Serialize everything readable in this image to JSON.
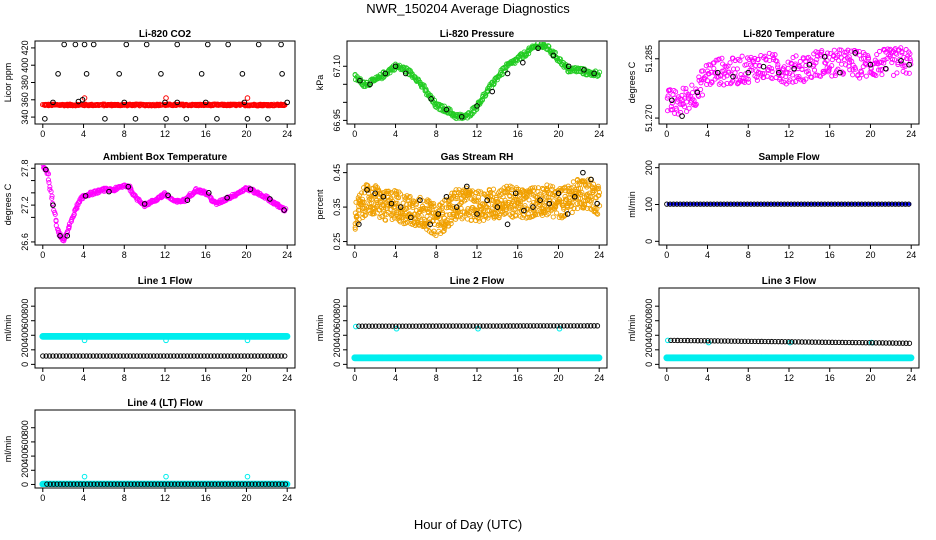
{
  "page": {
    "title": "NWR_150204  Average Diagnostics",
    "xlabel": "Hour of Day (UTC)"
  },
  "colors": {
    "black": "#000000",
    "red": "#ff0000",
    "green": "#22cc22",
    "magenta": "#ff00ff",
    "orange": "#f0a000",
    "blue": "#0000ff",
    "cyan": "#00eeee"
  },
  "chart_data": [
    {
      "type": "scatter",
      "title": "Li-820 CO2",
      "ylabel": "Licor ppm",
      "x_ticks": [
        0,
        4,
        8,
        12,
        16,
        20,
        24
      ],
      "y_ticks": [
        340,
        360,
        380,
        400,
        420
      ],
      "xlim": [
        0,
        24
      ],
      "ylim": [
        332,
        428
      ],
      "series": [
        {
          "color": "red",
          "style": "dense",
          "x": [
            0,
            4,
            8,
            12,
            16,
            20,
            23.8
          ],
          "y": [
            354,
            354,
            354,
            354,
            354,
            354,
            354
          ],
          "jitter": 1
        },
        {
          "color": "red",
          "style": "points",
          "x": [
            4.1,
            12.1,
            20.1
          ],
          "y": [
            362,
            362,
            362
          ]
        },
        {
          "color": "black",
          "style": "points",
          "x": [
            0.2,
            2.1,
            3.2,
            4.1,
            5,
            6.1,
            8.2,
            9.1,
            10.2,
            12.1,
            13.2,
            14.1,
            16.2,
            17.1,
            18.2,
            20.1,
            21.2,
            22.1,
            23.4
          ],
          "y": [
            338,
            424,
            424,
            424,
            424,
            338,
            424,
            338,
            424,
            338,
            424,
            338,
            424,
            338,
            424,
            338,
            424,
            338,
            424
          ]
        },
        {
          "color": "black",
          "style": "points",
          "x": [
            1.5,
            3.5,
            4.3,
            7.5,
            11.6,
            15.6,
            19.6,
            23.5
          ],
          "y": [
            390,
            358,
            390,
            390,
            390,
            390,
            390,
            390
          ]
        },
        {
          "color": "black",
          "style": "points",
          "x": [
            1,
            3.9,
            8,
            12,
            13.2,
            16,
            19.8,
            24
          ],
          "y": [
            357,
            360,
            357,
            357,
            357,
            357,
            357,
            357
          ]
        }
      ]
    },
    {
      "type": "scatter",
      "title": "Li-820 Pressure",
      "ylabel": "kPa",
      "x_ticks": [
        0,
        4,
        8,
        12,
        16,
        20,
        24
      ],
      "y_ticks": [
        66.95,
        67.0,
        67.05,
        67.1
      ],
      "y_tick_labels": [
        "66.95",
        "",
        "",
        "67.10"
      ],
      "xlim": [
        0,
        24
      ],
      "ylim": [
        66.94,
        67.17
      ],
      "series": [
        {
          "color": "green",
          "style": "dense",
          "x": [
            0,
            1,
            2,
            3,
            4,
            5,
            6,
            7,
            8,
            9,
            10,
            11,
            12,
            13,
            14,
            15,
            16,
            17,
            18,
            19,
            20,
            21,
            22,
            23,
            24
          ],
          "y": [
            67.07,
            67.05,
            67.06,
            67.08,
            67.1,
            67.09,
            67.07,
            67.03,
            66.99,
            66.98,
            66.96,
            66.96,
            66.99,
            67.03,
            67.07,
            67.1,
            67.12,
            67.14,
            67.16,
            67.15,
            67.12,
            67.09,
            67.09,
            67.08,
            67.08
          ],
          "jitter": 0.008
        },
        {
          "color": "black",
          "style": "points",
          "x": [
            0.5,
            1.5,
            3,
            4,
            5,
            7.5,
            9,
            10.5,
            12,
            13.5,
            15,
            16.5,
            18,
            19.5,
            21,
            22.5,
            23.5
          ],
          "y": [
            67.06,
            67.05,
            67.08,
            67.1,
            67.08,
            67.01,
            66.98,
            66.96,
            66.99,
            67.03,
            67.08,
            67.11,
            67.15,
            67.13,
            67.1,
            67.09,
            67.08
          ]
        }
      ]
    },
    {
      "type": "scatter",
      "title": "Li-820 Temperature",
      "ylabel": "degrees C",
      "x_ticks": [
        0,
        4,
        8,
        12,
        16,
        20,
        24
      ],
      "y_ticks": [
        51.27,
        51.285
      ],
      "y_tick_labels": [
        "51.270",
        "51.285"
      ],
      "xlim": [
        0,
        24
      ],
      "ylim": [
        51.2685,
        51.2895
      ],
      "series": [
        {
          "color": "magenta",
          "style": "dense",
          "x": [
            0,
            1,
            2,
            3,
            4,
            5,
            6,
            7,
            8,
            9,
            10,
            11,
            12,
            13,
            14,
            15,
            16,
            17,
            18,
            19,
            20,
            21,
            22,
            23,
            24
          ],
          "y": [
            51.274,
            51.2735,
            51.275,
            51.277,
            51.281,
            51.282,
            51.2815,
            51.282,
            51.2825,
            51.283,
            51.283,
            51.2825,
            51.282,
            51.2825,
            51.283,
            51.284,
            51.2835,
            51.284,
            51.284,
            51.2835,
            51.2835,
            51.284,
            51.284,
            51.2845,
            51.284
          ],
          "jitter": 0.0035
        },
        {
          "color": "black",
          "style": "points",
          "x": [
            0.5,
            1.5,
            3,
            5,
            6.5,
            8,
            9.5,
            11,
            12.5,
            14,
            15.5,
            17,
            18.5,
            20,
            21.5,
            23,
            23.8
          ],
          "y": [
            51.2745,
            51.2705,
            51.2765,
            51.2815,
            51.2805,
            51.2815,
            51.283,
            51.2815,
            51.2825,
            51.2835,
            51.2855,
            51.2815,
            51.2865,
            51.2835,
            51.2825,
            51.2845,
            51.2835
          ]
        }
      ]
    },
    {
      "type": "scatter",
      "title": "Ambient Box Temperature",
      "ylabel": "degrees C",
      "x_ticks": [
        0,
        4,
        8,
        12,
        16,
        20,
        24
      ],
      "y_ticks": [
        26.6,
        27.0,
        27.2,
        27.4,
        27.6,
        27.8
      ],
      "y_tick_labels": [
        "26.6",
        "",
        "27.2",
        "",
        "",
        "27.8"
      ],
      "xlim": [
        0,
        24
      ],
      "ylim": [
        26.55,
        27.87
      ],
      "series": [
        {
          "color": "magenta",
          "style": "dense",
          "x": [
            0,
            0.5,
            1,
            1.5,
            2,
            2.5,
            3,
            3.5,
            4,
            5,
            6,
            7,
            8,
            8.5,
            9,
            10,
            11,
            12,
            13,
            14,
            15,
            16,
            17,
            18,
            19,
            20,
            21,
            22,
            23,
            23.8
          ],
          "y": [
            27.85,
            27.7,
            27.2,
            26.75,
            26.62,
            26.8,
            27.05,
            27.22,
            27.35,
            27.4,
            27.45,
            27.45,
            27.52,
            27.5,
            27.35,
            27.2,
            27.28,
            27.38,
            27.25,
            27.28,
            27.45,
            27.4,
            27.22,
            27.3,
            27.38,
            27.48,
            27.4,
            27.32,
            27.2,
            27.12
          ],
          "jitter": 0.025
        },
        {
          "color": "black",
          "style": "points",
          "x": [
            0.3,
            1,
            1.7,
            2.4,
            4.2,
            6.5,
            8.4,
            10,
            12.3,
            14.2,
            16.3,
            18.1,
            20.4,
            22.3,
            23.7
          ],
          "y": [
            27.78,
            27.2,
            26.7,
            26.7,
            27.35,
            27.42,
            27.5,
            27.22,
            27.36,
            27.28,
            27.4,
            27.32,
            27.46,
            27.3,
            27.12
          ]
        }
      ]
    },
    {
      "type": "scatter",
      "title": "Gas Stream RH",
      "ylabel": "percent",
      "x_ticks": [
        0,
        4,
        8,
        12,
        16,
        20,
        24
      ],
      "y_ticks": [
        0.25,
        0.35,
        0.45
      ],
      "xlim": [
        0,
        24
      ],
      "ylim": [
        0.24,
        0.475
      ],
      "series": [
        {
          "color": "orange",
          "style": "band",
          "x": [
            0,
            1,
            2,
            3,
            4,
            5,
            6,
            7,
            8,
            9,
            10,
            11,
            12,
            13,
            14,
            15,
            16,
            17,
            18,
            19,
            20,
            21,
            22,
            23,
            24
          ],
          "y": [
            0.32,
            0.37,
            0.37,
            0.35,
            0.36,
            0.34,
            0.34,
            0.33,
            0.31,
            0.33,
            0.36,
            0.36,
            0.35,
            0.36,
            0.36,
            0.37,
            0.36,
            0.36,
            0.37,
            0.37,
            0.36,
            0.37,
            0.39,
            0.39,
            0.37
          ],
          "jitter": 0.045
        },
        {
          "color": "black",
          "style": "points",
          "x": [
            0.4,
            1.2,
            2,
            2.8,
            3.6,
            4.5,
            5.5,
            6.4,
            7.4,
            8.2,
            9,
            10,
            11,
            12,
            13,
            14,
            15,
            15.8,
            16.6,
            17.5,
            18.2,
            19.1,
            20,
            20.9,
            21.6,
            22.4,
            23.2,
            23.8
          ],
          "y": [
            0.3,
            0.4,
            0.39,
            0.38,
            0.36,
            0.35,
            0.32,
            0.37,
            0.3,
            0.33,
            0.38,
            0.35,
            0.41,
            0.33,
            0.37,
            0.35,
            0.3,
            0.39,
            0.34,
            0.35,
            0.37,
            0.36,
            0.39,
            0.33,
            0.38,
            0.45,
            0.43,
            0.36
          ]
        }
      ]
    },
    {
      "type": "scatter",
      "title": "Sample Flow",
      "ylabel": "ml/min",
      "x_ticks": [
        0,
        4,
        8,
        12,
        16,
        20,
        24
      ],
      "y_ticks": [
        0,
        100,
        200
      ],
      "xlim": [
        0,
        24
      ],
      "ylim": [
        -10,
        210
      ],
      "series": [
        {
          "color": "blue",
          "style": "line",
          "x": [
            0,
            24
          ],
          "y": [
            101,
            101
          ]
        },
        {
          "color": "black",
          "style": "row",
          "x": [
            0,
            24
          ],
          "y": [
            101,
            101
          ],
          "step": 0.33
        }
      ]
    },
    {
      "type": "scatter",
      "title": "Line 1 Flow",
      "ylabel": "ml/min",
      "x_ticks": [
        0,
        4,
        8,
        12,
        16,
        20,
        24
      ],
      "y_ticks": [
        0,
        200,
        400,
        600,
        800
      ],
      "xlim": [
        0,
        24
      ],
      "ylim": [
        -50,
        1050
      ],
      "series": [
        {
          "color": "cyan",
          "style": "row",
          "x": [
            0,
            24
          ],
          "y": [
            385,
            385
          ],
          "step": 0.11,
          "thick": true
        },
        {
          "color": "cyan",
          "style": "points",
          "x": [
            4.1,
            12.1,
            20.1
          ],
          "y": [
            330,
            330,
            330
          ]
        },
        {
          "color": "black",
          "style": "row",
          "x": [
            0,
            24
          ],
          "y": [
            115,
            115
          ],
          "step": 0.33
        }
      ]
    },
    {
      "type": "scatter",
      "title": "Line 2 Flow",
      "ylabel": "ml/min",
      "x_ticks": [
        0,
        4,
        8,
        12,
        16,
        20,
        24
      ],
      "y_ticks": [
        0,
        200,
        400,
        600,
        800
      ],
      "xlim": [
        0,
        24
      ],
      "ylim": [
        -50,
        1050
      ],
      "series": [
        {
          "color": "cyan",
          "style": "row",
          "x": [
            0,
            24
          ],
          "y": [
            90,
            90
          ],
          "step": 0.11,
          "thick": true
        },
        {
          "color": "cyan",
          "style": "points",
          "x": [
            0.1,
            4.1,
            12.1,
            20.1
          ],
          "y": [
            520,
            490,
            490,
            490
          ]
        },
        {
          "color": "black",
          "style": "row",
          "x": [
            0.4,
            24
          ],
          "y": [
            525,
            530
          ],
          "step": 0.33
        }
      ]
    },
    {
      "type": "scatter",
      "title": "Line 3 Flow",
      "ylabel": "ml/min",
      "x_ticks": [
        0,
        4,
        8,
        12,
        16,
        20,
        24
      ],
      "y_ticks": [
        0,
        200,
        400,
        600,
        800
      ],
      "xlim": [
        0,
        24
      ],
      "ylim": [
        -50,
        1050
      ],
      "series": [
        {
          "color": "cyan",
          "style": "row",
          "x": [
            0,
            24
          ],
          "y": [
            90,
            90
          ],
          "step": 0.11,
          "thick": true
        },
        {
          "color": "cyan",
          "style": "points",
          "x": [
            0.1,
            4.1,
            12.1,
            20.1
          ],
          "y": [
            330,
            300,
            300,
            300
          ]
        },
        {
          "color": "black",
          "style": "row",
          "x": [
            0.4,
            24
          ],
          "y": [
            330,
            290
          ],
          "step": 0.33
        }
      ]
    },
    {
      "type": "scatter",
      "title": "Line 4 (LT) Flow",
      "ylabel": "ml/min",
      "x_ticks": [
        0,
        4,
        8,
        12,
        16,
        20,
        24
      ],
      "y_ticks": [
        0,
        200,
        400,
        600,
        800
      ],
      "xlim": [
        0,
        24
      ],
      "ylim": [
        -50,
        1050
      ],
      "series": [
        {
          "color": "cyan",
          "style": "row",
          "x": [
            0,
            24
          ],
          "y": [
            5,
            5
          ],
          "step": 0.11,
          "thick": true
        },
        {
          "color": "cyan",
          "style": "points",
          "x": [
            4.1,
            12.1,
            20.1
          ],
          "y": [
            110,
            110,
            110
          ]
        },
        {
          "color": "black",
          "style": "row",
          "x": [
            0.4,
            24
          ],
          "y": [
            5,
            5
          ],
          "step": 0.33
        }
      ]
    }
  ]
}
